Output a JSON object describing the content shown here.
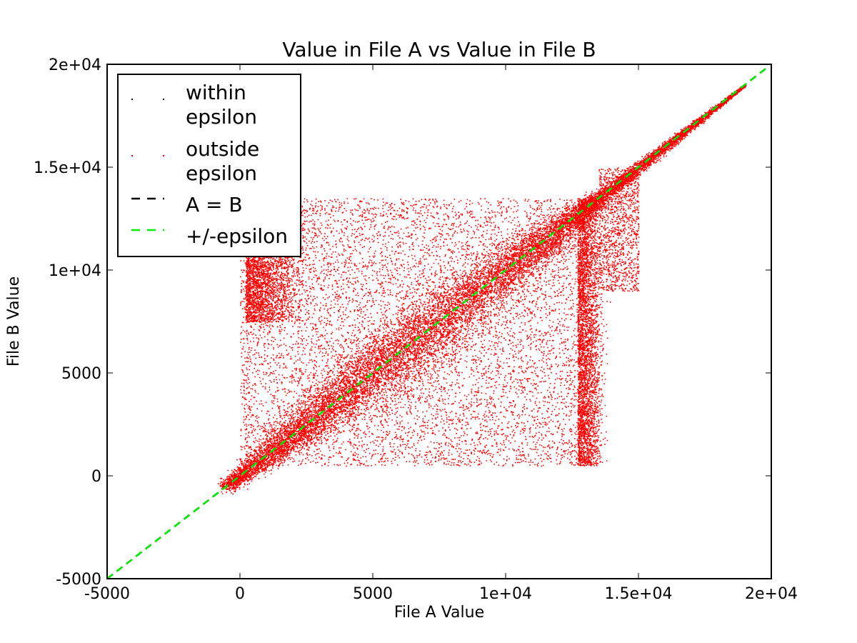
{
  "chart_data": {
    "type": "scatter",
    "title": "Value in File A vs Value in File B",
    "xlabel": "File A Value",
    "ylabel": "File B Value",
    "xlim": [
      -5000,
      20000
    ],
    "ylim": [
      -5000,
      20000
    ],
    "xticks": [
      -5000,
      0,
      5000,
      10000,
      15000,
      20000
    ],
    "xtick_labels": [
      "-5000",
      "0",
      "5000",
      "1e+04",
      "1.5e+04",
      "2e+04"
    ],
    "yticks": [
      -5000,
      0,
      5000,
      10000,
      15000,
      20000
    ],
    "ytick_labels": [
      "-5000",
      "0",
      "5000",
      "1e+04",
      "1.5e+04",
      "2e+04"
    ],
    "grid": false,
    "legend_position": "upper-left",
    "legend": [
      {
        "label_lines": [
          "within",
          "epsilon"
        ],
        "marker": "point",
        "color": "#000000"
      },
      {
        "label_lines": [
          "outside",
          "epsilon"
        ],
        "marker": "point",
        "color": "#ff0000"
      },
      {
        "label_lines": [
          "A = B"
        ],
        "marker": "dashed-line",
        "color": "#000000"
      },
      {
        "label_lines": [
          "+/-epsilon"
        ],
        "marker": "dashed-line",
        "color": "#00ee00"
      }
    ],
    "series": [
      {
        "name": "within epsilon",
        "color": "#000000",
        "points": []
      },
      {
        "name": "outside epsilon",
        "color": "#ff0000",
        "distribution": "dense cloud: diagonal band from (-500,-500) to (19000,19000) plus uniform block x 0..13500, y 500..13500",
        "block_x_range": [
          0,
          13500
        ],
        "block_y_range": [
          500,
          13500
        ],
        "diagonal_range": [
          -500,
          19000
        ]
      }
    ],
    "lines": [
      {
        "name": "A = B",
        "x": [
          -5000,
          19800
        ],
        "y": [
          -5000,
          19800
        ],
        "color": "#000000",
        "style": "dashed"
      },
      {
        "name": "+/-epsilon",
        "x": [
          -5000,
          19800
        ],
        "y": [
          -5000,
          19800
        ],
        "color": "#00ee00",
        "style": "dashed"
      }
    ]
  }
}
